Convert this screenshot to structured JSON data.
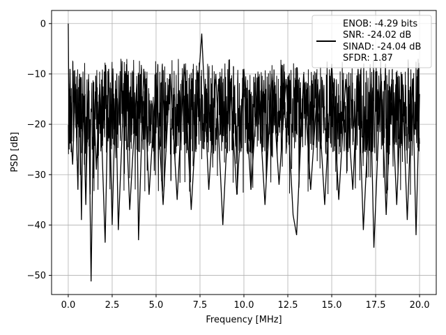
{
  "chart_data": {
    "type": "line",
    "xlabel": "Frequency [MHz]",
    "ylabel": "PSD [dB]",
    "xlim": [
      -0.95,
      20.95
    ],
    "ylim": [
      -53.8,
      2.6
    ],
    "xticks": [
      0.0,
      2.5,
      5.0,
      7.5,
      10.0,
      12.5,
      15.0,
      17.5,
      20.0
    ],
    "xtick_labels": [
      "0.0",
      "2.5",
      "5.0",
      "7.5",
      "10.0",
      "12.5",
      "15.0",
      "17.5",
      "20.0"
    ],
    "yticks": [
      0,
      -10,
      -20,
      -30,
      -40,
      -50
    ],
    "ytick_labels": [
      "0",
      "−10",
      "−20",
      "−30",
      "−40",
      "−50"
    ],
    "grid": true,
    "legend_placement": "top-right",
    "legend_lines": [
      "ENOB: -4.29 bits",
      "SNR: -24.02 dB",
      "SINAD: -24.04 dB",
      "SFDR: 1.87"
    ],
    "series_color": "#000000",
    "series": [
      {
        "x": [
          0.0,
          0.05,
          0.1,
          0.15,
          0.25,
          0.4,
          0.55,
          0.65,
          0.75,
          0.85,
          1.0,
          1.15,
          1.3,
          1.45,
          1.6,
          1.8,
          2.1,
          2.3,
          2.5,
          2.7,
          2.85,
          3.2,
          3.5,
          3.9,
          4.0,
          4.3,
          4.6,
          5.0,
          5.4,
          5.8,
          6.2,
          6.6,
          7.0,
          7.4,
          7.6,
          8.0,
          8.4,
          8.8,
          9.2,
          9.6,
          10.0,
          10.4,
          10.8,
          11.2,
          11.6,
          12.0,
          12.4,
          12.8,
          13.0,
          13.4,
          13.8,
          14.2,
          14.6,
          15.0,
          15.4,
          15.8,
          16.2,
          16.5,
          16.8,
          17.2,
          17.4,
          17.8,
          18.1,
          18.4,
          18.7,
          19.0,
          19.3,
          19.6,
          19.8,
          20.0
        ],
        "y": [
          0.0,
          -25.0,
          -9.0,
          -22.0,
          -28.0,
          -12.0,
          -33.0,
          -10.0,
          -39.0,
          -14.0,
          -36.0,
          -11.0,
          -51.2,
          -15.0,
          -29.0,
          -12.0,
          -43.5,
          -9.0,
          -40.0,
          -13.0,
          -41.0,
          -10.0,
          -37.0,
          -12.0,
          -43.0,
          -9.0,
          -34.0,
          -11.0,
          -36.0,
          -10.0,
          -35.0,
          -8.0,
          -37.0,
          -12.0,
          -2.0,
          -33.0,
          -10.0,
          -40.0,
          -11.0,
          -34.0,
          -9.0,
          -33.0,
          -12.0,
          -36.0,
          -10.0,
          -32.0,
          -11.0,
          -38.0,
          -42.0,
          -10.0,
          -33.0,
          -12.0,
          -36.0,
          -8.0,
          -35.0,
          -11.0,
          -33.0,
          -9.0,
          -41.0,
          -12.0,
          -44.5,
          -10.0,
          -38.0,
          -12.0,
          -36.0,
          -10.0,
          -39.0,
          -11.0,
          -42.0,
          -14.0
        ]
      }
    ]
  }
}
